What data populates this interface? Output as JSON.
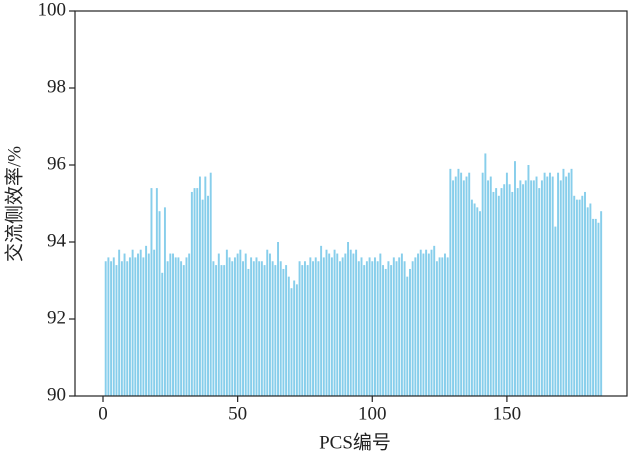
{
  "chart_data": {
    "type": "bar",
    "x_label": "PCS编号",
    "y_label": "交流侧效率/%",
    "color": "#87ceeb",
    "x": [
      1,
      2,
      3,
      4,
      5,
      6,
      7,
      8,
      9,
      10,
      11,
      12,
      13,
      14,
      15,
      16,
      17,
      18,
      19,
      20,
      21,
      22,
      23,
      24,
      25,
      26,
      27,
      28,
      29,
      30,
      31,
      32,
      33,
      34,
      35,
      36,
      37,
      38,
      39,
      40,
      41,
      42,
      43,
      44,
      45,
      46,
      47,
      48,
      49,
      50,
      51,
      52,
      53,
      54,
      55,
      56,
      57,
      58,
      59,
      60,
      61,
      62,
      63,
      64,
      65,
      66,
      67,
      68,
      69,
      70,
      71,
      72,
      73,
      74,
      75,
      76,
      77,
      78,
      79,
      80,
      81,
      82,
      83,
      84,
      85,
      86,
      87,
      88,
      89,
      90,
      91,
      92,
      93,
      94,
      95,
      96,
      97,
      98,
      99,
      100,
      101,
      102,
      103,
      104,
      105,
      106,
      107,
      108,
      109,
      110,
      111,
      112,
      113,
      114,
      115,
      116,
      117,
      118,
      119,
      120,
      121,
      122,
      123,
      124,
      125,
      126,
      127,
      128,
      129,
      130,
      131,
      132,
      133,
      134,
      135,
      136,
      137,
      138,
      139,
      140,
      141,
      142,
      143,
      144,
      145,
      146,
      147,
      148,
      149,
      150,
      151,
      152,
      153,
      154,
      155,
      156,
      157,
      158,
      159,
      160,
      161,
      162,
      163,
      164,
      165,
      166,
      167,
      168,
      169,
      170,
      171,
      172,
      173,
      174,
      175,
      176,
      177,
      178,
      179,
      180,
      181,
      182,
      183,
      184,
      185
    ],
    "values": [
      93.5,
      93.6,
      93.5,
      93.6,
      93.4,
      93.8,
      93.5,
      93.7,
      93.5,
      93.6,
      93.8,
      93.6,
      93.7,
      93.8,
      93.6,
      93.9,
      93.7,
      95.4,
      93.8,
      95.4,
      94.8,
      93.2,
      94.9,
      93.5,
      93.7,
      93.7,
      93.6,
      93.6,
      93.5,
      93.4,
      93.6,
      93.7,
      95.3,
      95.4,
      95.4,
      95.7,
      95.1,
      95.7,
      95.2,
      95.8,
      93.5,
      93.4,
      93.7,
      93.4,
      93.4,
      93.8,
      93.6,
      93.5,
      93.6,
      93.7,
      93.8,
      93.5,
      93.7,
      93.3,
      93.6,
      93.5,
      93.6,
      93.5,
      93.5,
      93.4,
      93.8,
      93.7,
      93.5,
      93.4,
      94.0,
      93.5,
      93.3,
      93.4,
      93.1,
      92.8,
      93.0,
      92.9,
      93.5,
      93.4,
      93.5,
      93.4,
      93.6,
      93.5,
      93.6,
      93.5,
      93.9,
      93.6,
      93.8,
      93.7,
      93.6,
      93.8,
      93.7,
      93.5,
      93.6,
      93.7,
      94.0,
      93.8,
      93.7,
      93.8,
      93.5,
      93.6,
      93.4,
      93.5,
      93.6,
      93.5,
      93.6,
      93.5,
      93.7,
      93.4,
      93.3,
      93.5,
      93.4,
      93.6,
      93.5,
      93.6,
      93.7,
      93.5,
      93.1,
      93.3,
      93.5,
      93.6,
      93.7,
      93.8,
      93.7,
      93.8,
      93.7,
      93.8,
      93.9,
      93.5,
      93.6,
      93.6,
      93.7,
      93.6,
      95.9,
      95.6,
      95.7,
      95.9,
      95.8,
      95.6,
      95.7,
      95.8,
      95.1,
      95.0,
      94.9,
      94.8,
      95.8,
      96.3,
      95.6,
      95.7,
      95.3,
      95.4,
      95.2,
      95.4,
      95.5,
      95.8,
      95.5,
      95.3,
      96.1,
      95.4,
      95.6,
      95.5,
      95.6,
      96.0,
      95.6,
      95.6,
      95.7,
      95.4,
      95.6,
      95.8,
      95.7,
      95.8,
      95.7,
      94.4,
      95.8,
      95.6,
      95.9,
      95.7,
      95.8,
      95.9,
      95.2,
      95.1,
      95.1,
      95.2,
      95.3,
      94.9,
      95.0,
      94.6,
      94.6,
      94.5,
      94.8
    ],
    "xlim": [
      -10.4,
      194.6
    ],
    "ylim": [
      90,
      100
    ],
    "xticks": [
      0,
      50,
      100,
      150
    ],
    "yticks": [
      90,
      92,
      94,
      96,
      98,
      100
    ]
  }
}
